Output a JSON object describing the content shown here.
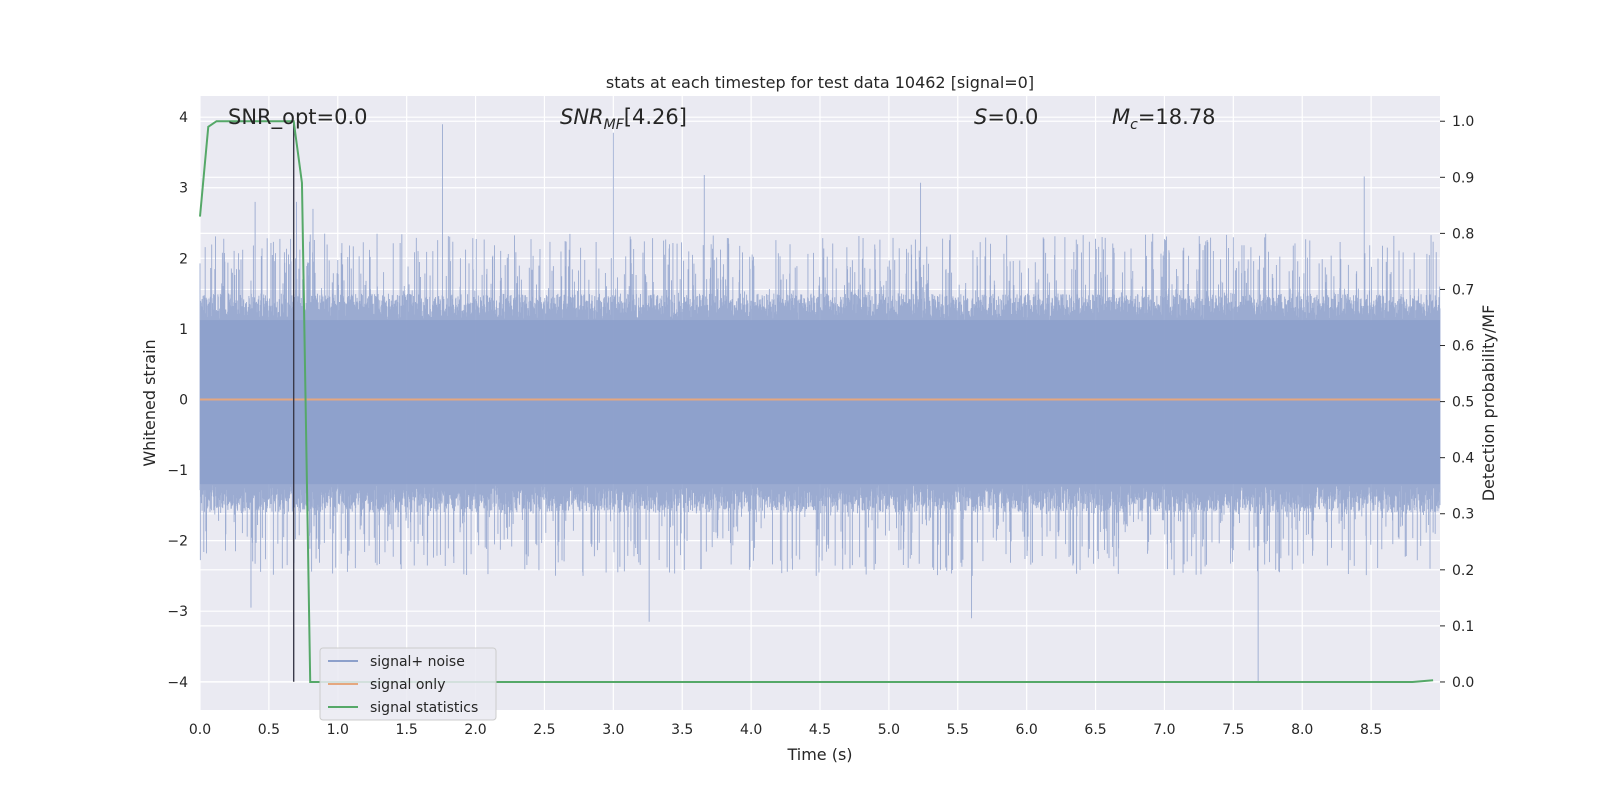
{
  "chart_data": {
    "type": "line",
    "title": "stats at each timestep for test data 10462 [signal=0]",
    "xlabel": "Time (s)",
    "ylabel": "Whitened strain",
    "y2label": "Detection probability/MF",
    "xlim": [
      0.0,
      9.0
    ],
    "ylim": [
      -4.4,
      4.3
    ],
    "y2lim": [
      -0.05,
      1.045
    ],
    "xticks": [
      "0.0",
      "0.5",
      "1.0",
      "1.5",
      "2.0",
      "2.5",
      "3.0",
      "3.5",
      "4.0",
      "4.5",
      "5.0",
      "5.5",
      "6.0",
      "6.5",
      "7.0",
      "7.5",
      "8.0",
      "8.5"
    ],
    "yticks": [
      "−4",
      "−3",
      "−2",
      "−1",
      "0",
      "1",
      "2",
      "3",
      "4"
    ],
    "y2ticks": [
      "0.0",
      "0.1",
      "0.2",
      "0.3",
      "0.4",
      "0.5",
      "0.6",
      "0.7",
      "0.8",
      "0.9",
      "1.0"
    ],
    "grid": true,
    "legend_position": "lower-left",
    "annotations": {
      "snr_opt": "SNR_opt=0.0",
      "snr_mf": "[4.26]",
      "s_value": "=0.0",
      "mc_value": "=18.78"
    },
    "vline_x": 0.68,
    "noise_band": {
      "upper": 1.5,
      "lower": -1.6,
      "spikes_up_max": 3.9,
      "spikes_down_min": -4.0
    },
    "series": [
      {
        "name": "signal+ noise",
        "color": "#8da0cb",
        "axis": "left",
        "peaks": [
          {
            "x": 0.4,
            "y": 2.8
          },
          {
            "x": 0.7,
            "y": 2.8
          },
          {
            "x": 0.82,
            "y": 2.7
          },
          {
            "x": 1.76,
            "y": 3.9
          },
          {
            "x": 3.0,
            "y": 3.78
          },
          {
            "x": 3.66,
            "y": 3.18
          },
          {
            "x": 5.23,
            "y": 3.07
          },
          {
            "x": 8.45,
            "y": 3.16
          },
          {
            "x": 0.37,
            "y": -2.95
          },
          {
            "x": 3.26,
            "y": -3.15
          },
          {
            "x": 5.6,
            "y": -3.1
          },
          {
            "x": 7.68,
            "y": -4.0
          }
        ]
      },
      {
        "name": "signal only",
        "color": "#e5a77f",
        "axis": "left",
        "x": [
          0.0,
          9.0
        ],
        "y": [
          0.0,
          0.0
        ]
      },
      {
        "name": "signal statistics",
        "color": "#55a868",
        "axis": "right",
        "x": [
          0.0,
          0.06,
          0.12,
          0.2,
          0.4,
          0.6,
          0.68,
          0.74,
          0.8,
          1.0,
          3.0,
          6.0,
          8.8,
          8.95
        ],
        "y": [
          0.83,
          0.99,
          1.0,
          1.0,
          1.0,
          1.0,
          1.0,
          0.89,
          0.0,
          0.0,
          0.0,
          0.0,
          0.0,
          0.003
        ]
      }
    ]
  }
}
